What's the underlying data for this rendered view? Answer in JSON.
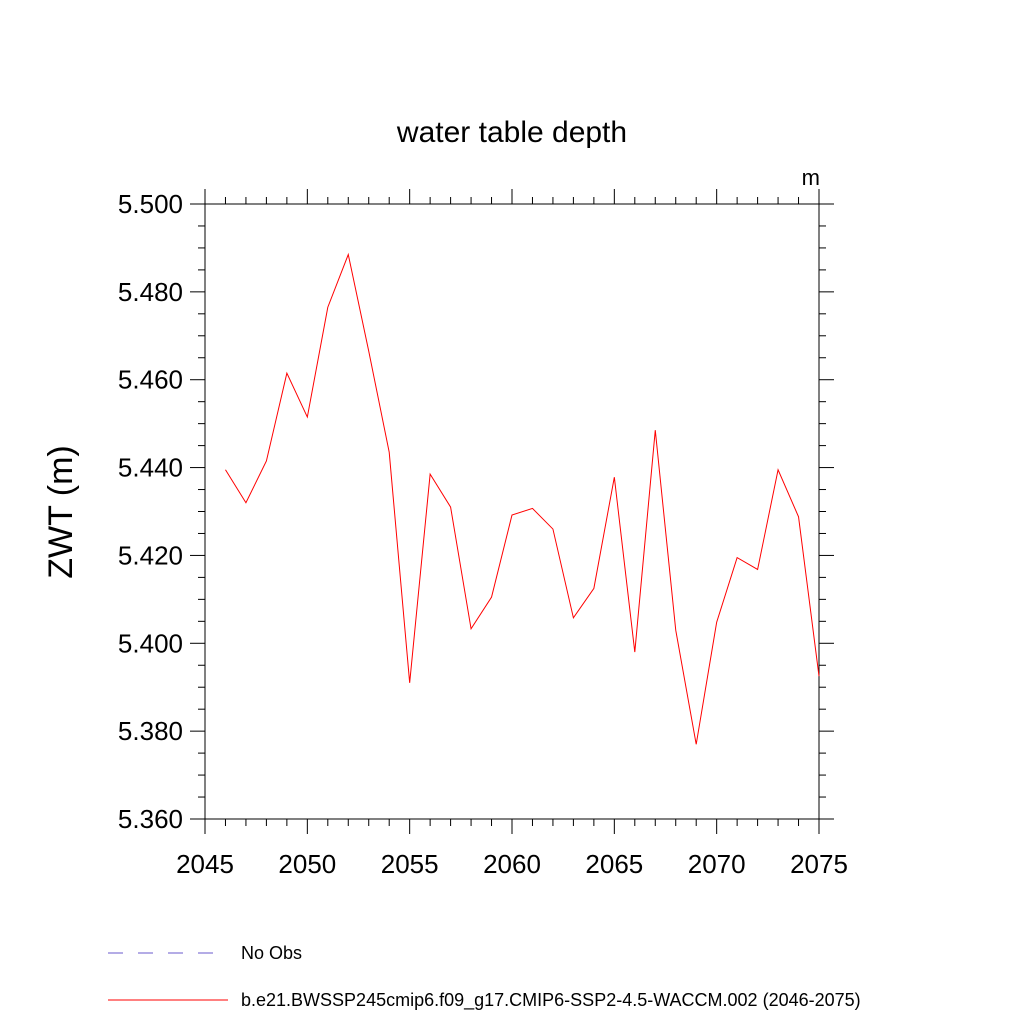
{
  "chart_data": {
    "type": "line",
    "title": "water table depth",
    "units": "m",
    "ylabel": "ZWT  (m)",
    "xlabel": "",
    "xlim": [
      2045,
      2075
    ],
    "ylim": [
      5.36,
      5.5
    ],
    "xticks": [
      2045,
      2050,
      2055,
      2060,
      2065,
      2070,
      2075
    ],
    "yticks": [
      5.36,
      5.38,
      5.4,
      5.42,
      5.44,
      5.46,
      5.48,
      5.5
    ],
    "ytick_labels": [
      "5.360",
      "5.380",
      "5.400",
      "5.420",
      "5.440",
      "5.460",
      "5.480",
      "5.500"
    ],
    "series": [
      {
        "name": "b.e21.BWSSP245cmip6.f09_g17.CMIP6-SSP2-4.5-WACCM.002 (2046-2075)",
        "color": "#ff0000",
        "x": [
          2046,
          2047,
          2048,
          2049,
          2050,
          2051,
          2052,
          2053,
          2054,
          2055,
          2056,
          2057,
          2058,
          2059,
          2060,
          2061,
          2062,
          2063,
          2064,
          2065,
          2066,
          2067,
          2068,
          2069,
          2070,
          2071,
          2072,
          2073,
          2074,
          2075
        ],
        "values": [
          5.4395,
          5.432,
          5.4415,
          5.4615,
          5.4515,
          5.4765,
          5.4885,
          5.4665,
          5.4435,
          5.391,
          5.4385,
          5.431,
          5.4033,
          5.4105,
          5.4292,
          5.4307,
          5.426,
          5.4058,
          5.4125,
          5.4378,
          5.398,
          5.4485,
          5.403,
          5.377,
          5.4048,
          5.4195,
          5.4168,
          5.4395,
          5.4288,
          5.3925
        ]
      }
    ],
    "legend": [
      {
        "label": "No Obs",
        "color": "#6a5acd",
        "style": "dashed"
      },
      {
        "label": "b.e21.BWSSP245cmip6.f09_g17.CMIP6-SSP2-4.5-WACCM.002 (2046-2075)",
        "color": "#ff0000",
        "style": "solid"
      }
    ]
  }
}
